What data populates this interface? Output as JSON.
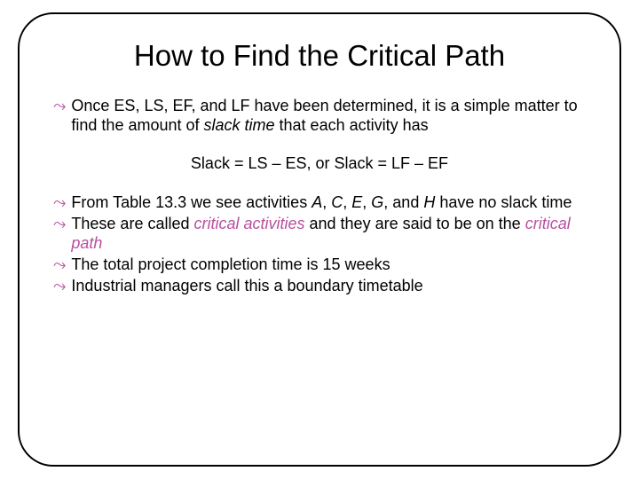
{
  "title": "How to Find the Critical Path",
  "bullet_glyph": "⤳",
  "colors": {
    "accent": "#b84f9e",
    "text": "#000000",
    "border": "#000000",
    "background": "#ffffff"
  },
  "typography": {
    "title_fontsize": 33,
    "body_fontsize": 18,
    "font_family": "Arial"
  },
  "items": [
    {
      "pre": "Once ES, LS, EF, and LF have been determined, it is a simple matter to find the amount of ",
      "em1": "slack time",
      "post": " that each activity has"
    }
  ],
  "formula": "Slack = LS – ES,  or  Slack = LF – EF",
  "items2": [
    {
      "pre": "From Table 13.3 we see activities ",
      "em1": "A",
      "mid1": ", ",
      "em2": "C",
      "mid2": ", ",
      "em3": "E",
      "mid3": ", ",
      "em4": "G",
      "mid4": ", and ",
      "em5": "H",
      "post": " have no slack time"
    },
    {
      "pre": "These are called ",
      "crit1": "critical activities",
      "mid1": " and they are said to be on the ",
      "crit2": "critical path",
      "post": ""
    },
    {
      "pre": "The total project completion time is 15 weeks",
      "post": ""
    },
    {
      "pre": "Industrial managers call this a boundary timetable",
      "post": ""
    }
  ]
}
